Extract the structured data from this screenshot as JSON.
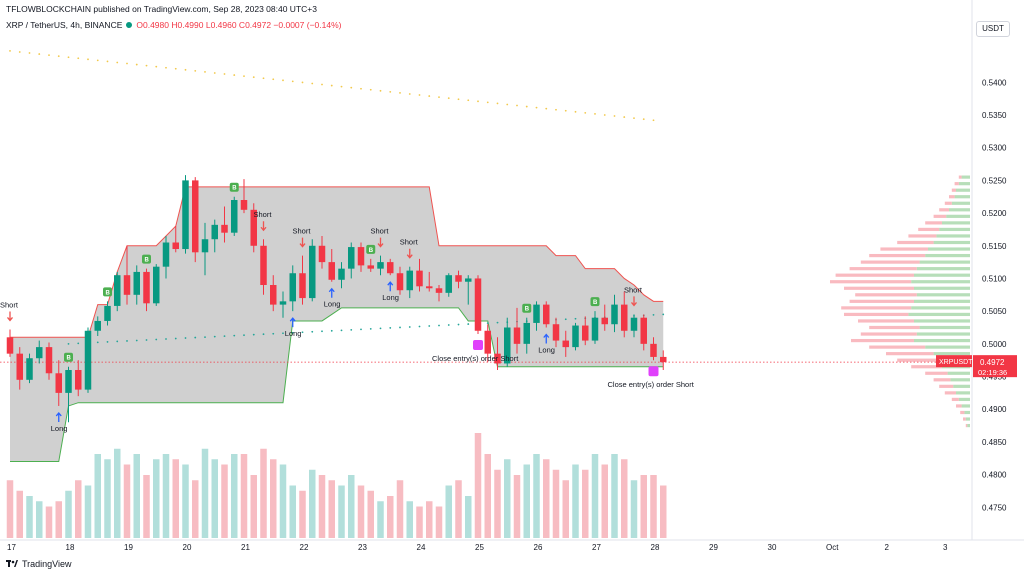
{
  "header": {
    "publisher": "TFLOWBLOCKCHAIN published on TradingView.com, Sep 28, 2023 08:40 UTC+3",
    "symbol": "XRP / TetherUS, 4h, BINANCE",
    "ohlc": "O0.4980 H0.4990 L0.4960 C0.4972 −0.0007 (−0.14%)",
    "currency": "USDT"
  },
  "footer": {
    "brand": "TradingView"
  },
  "colors": {
    "up": "#089981",
    "down": "#f23645",
    "upVol": "#b2dfdb",
    "downVol": "#f7bcc2",
    "band": "#c8c8c8",
    "bandEdgeUp": "#4caf50",
    "bandEdgeDown": "#ef5350",
    "profileUp": "#a5d6a7",
    "profileDown": "#f8a9b0",
    "signalGreen": "#4caf50",
    "signalRed": "#ef5350",
    "close": "#e040fb"
  },
  "price_label": {
    "symbol": "XRPUSDT",
    "price": "0.4972",
    "countdown": "02:19:36"
  },
  "chart_data": {
    "type": "candlestick",
    "title": "XRP / TetherUS, 4h, BINANCE",
    "ylim": [
      0.47,
      0.548
    ],
    "y_ticks": [
      "0.5400",
      "0.5350",
      "0.5300",
      "0.5250",
      "0.5200",
      "0.5150",
      "0.5100",
      "0.5050",
      "0.5000",
      "0.4950",
      "0.4900",
      "0.4850",
      "0.4800",
      "0.4750"
    ],
    "x_ticks": [
      {
        "label": "17",
        "bar": 0
      },
      {
        "label": "18",
        "bar": 6
      },
      {
        "label": "19",
        "bar": 12
      },
      {
        "label": "20",
        "bar": 18
      },
      {
        "label": "21",
        "bar": 24
      },
      {
        "label": "22",
        "bar": 30
      },
      {
        "label": "23",
        "bar": 36
      },
      {
        "label": "24",
        "bar": 42
      },
      {
        "label": "25",
        "bar": 48
      },
      {
        "label": "26",
        "bar": 54
      },
      {
        "label": "27",
        "bar": 60
      },
      {
        "label": "28",
        "bar": 66
      },
      {
        "label": "29",
        "bar": 72
      },
      {
        "label": "30",
        "bar": 78
      },
      {
        "label": "Oct",
        "bar": 84
      },
      {
        "label": "2",
        "bar": 90
      },
      {
        "label": "3",
        "bar": 96
      }
    ],
    "candles": [
      [
        0.501,
        0.5022,
        0.498,
        0.4985
      ],
      [
        0.4985,
        0.4995,
        0.493,
        0.4945
      ],
      [
        0.4945,
        0.4985,
        0.494,
        0.4978
      ],
      [
        0.4978,
        0.5005,
        0.497,
        0.4995
      ],
      [
        0.4995,
        0.5002,
        0.4945,
        0.4955
      ],
      [
        0.4955,
        0.4975,
        0.4905,
        0.4925
      ],
      [
        0.4925,
        0.4965,
        0.488,
        0.496
      ],
      [
        0.496,
        0.4975,
        0.492,
        0.493
      ],
      [
        0.493,
        0.5025,
        0.4925,
        0.502
      ],
      [
        0.502,
        0.5042,
        0.5012,
        0.5035
      ],
      [
        0.5035,
        0.5065,
        0.5028,
        0.5058
      ],
      [
        0.5058,
        0.511,
        0.505,
        0.5105
      ],
      [
        0.5105,
        0.515,
        0.506,
        0.5075
      ],
      [
        0.5075,
        0.512,
        0.506,
        0.511
      ],
      [
        0.511,
        0.5115,
        0.505,
        0.5062
      ],
      [
        0.5062,
        0.5122,
        0.5058,
        0.5118
      ],
      [
        0.5118,
        0.5165,
        0.51,
        0.5155
      ],
      [
        0.5155,
        0.518,
        0.514,
        0.5145
      ],
      [
        0.5145,
        0.5258,
        0.5138,
        0.525
      ],
      [
        0.525,
        0.5255,
        0.5125,
        0.514
      ],
      [
        0.514,
        0.5185,
        0.5105,
        0.516
      ],
      [
        0.516,
        0.519,
        0.514,
        0.5182
      ],
      [
        0.5182,
        0.521,
        0.5155,
        0.517
      ],
      [
        0.517,
        0.5225,
        0.5165,
        0.522
      ],
      [
        0.522,
        0.5252,
        0.52,
        0.5205
      ],
      [
        0.5205,
        0.5215,
        0.514,
        0.515
      ],
      [
        0.515,
        0.516,
        0.5075,
        0.509
      ],
      [
        0.509,
        0.5105,
        0.505,
        0.506
      ],
      [
        0.506,
        0.508,
        0.504,
        0.5065
      ],
      [
        0.5065,
        0.512,
        0.505,
        0.5108
      ],
      [
        0.5108,
        0.5135,
        0.506,
        0.507
      ],
      [
        0.507,
        0.516,
        0.5065,
        0.515
      ],
      [
        0.515,
        0.5165,
        0.5115,
        0.5125
      ],
      [
        0.5125,
        0.5145,
        0.5095,
        0.5098
      ],
      [
        0.5098,
        0.5125,
        0.5085,
        0.5115
      ],
      [
        0.5115,
        0.5155,
        0.51,
        0.5148
      ],
      [
        0.5148,
        0.5155,
        0.511,
        0.512
      ],
      [
        0.512,
        0.513,
        0.511,
        0.5115
      ],
      [
        0.5115,
        0.5135,
        0.5105,
        0.5125
      ],
      [
        0.5125,
        0.513,
        0.5105,
        0.5108
      ],
      [
        0.5108,
        0.5118,
        0.5075,
        0.5082
      ],
      [
        0.5082,
        0.5118,
        0.507,
        0.5112
      ],
      [
        0.5112,
        0.513,
        0.508,
        0.5088
      ],
      [
        0.5088,
        0.511,
        0.508,
        0.5085
      ],
      [
        0.5085,
        0.509,
        0.5065,
        0.5078
      ],
      [
        0.5078,
        0.5108,
        0.5072,
        0.5105
      ],
      [
        0.5105,
        0.5112,
        0.5085,
        0.5095
      ],
      [
        0.5095,
        0.5105,
        0.506,
        0.51
      ],
      [
        0.51,
        0.5105,
        0.5015,
        0.502
      ],
      [
        0.502,
        0.503,
        0.4972,
        0.4985
      ],
      [
        0.4985,
        0.501,
        0.496,
        0.497
      ],
      [
        0.497,
        0.504,
        0.4965,
        0.5025
      ],
      [
        0.5025,
        0.5055,
        0.4985,
        0.5
      ],
      [
        0.5,
        0.504,
        0.4985,
        0.5032
      ],
      [
        0.5032,
        0.5065,
        0.502,
        0.506
      ],
      [
        0.506,
        0.5065,
        0.5025,
        0.503
      ],
      [
        0.503,
        0.504,
        0.4995,
        0.5005
      ],
      [
        0.5005,
        0.502,
        0.498,
        0.4995
      ],
      [
        0.4995,
        0.5032,
        0.499,
        0.5028
      ],
      [
        0.5028,
        0.5042,
        0.4998,
        0.5005
      ],
      [
        0.5005,
        0.505,
        0.5,
        0.504
      ],
      [
        0.504,
        0.506,
        0.502,
        0.503
      ],
      [
        0.503,
        0.5075,
        0.5018,
        0.506
      ],
      [
        0.506,
        0.508,
        0.501,
        0.502
      ],
      [
        0.502,
        0.5045,
        0.501,
        0.504
      ],
      [
        0.504,
        0.5045,
        0.499,
        0.5
      ],
      [
        0.5,
        0.501,
        0.4975,
        0.498
      ],
      [
        0.498,
        0.499,
        0.496,
        0.4972
      ]
    ],
    "volumes": [
      0.55,
      0.45,
      0.4,
      0.35,
      0.3,
      0.35,
      0.45,
      0.55,
      0.5,
      0.8,
      0.75,
      0.85,
      0.7,
      0.8,
      0.6,
      0.75,
      0.8,
      0.75,
      0.7,
      0.55,
      0.85,
      0.75,
      0.7,
      0.8,
      0.8,
      0.6,
      0.85,
      0.75,
      0.7,
      0.5,
      0.45,
      0.65,
      0.6,
      0.55,
      0.5,
      0.6,
      0.5,
      0.45,
      0.35,
      0.4,
      0.55,
      0.35,
      0.3,
      0.35,
      0.3,
      0.5,
      0.55,
      0.4,
      1.0,
      0.8,
      0.65,
      0.75,
      0.6,
      0.7,
      0.8,
      0.75,
      0.65,
      0.55,
      0.7,
      0.65,
      0.8,
      0.7,
      0.8,
      0.75,
      0.55,
      0.6,
      0.6,
      0.5
    ],
    "band": {
      "upper": [
        0.501,
        0.501,
        0.501,
        0.501,
        0.501,
        0.501,
        0.501,
        0.501,
        0.501,
        0.506,
        0.506,
        0.511,
        0.515,
        0.515,
        0.515,
        0.515,
        0.5165,
        0.518,
        0.524,
        0.524,
        0.524,
        0.524,
        0.524,
        0.524,
        0.524,
        0.524,
        0.524,
        0.524,
        0.524,
        0.524,
        0.524,
        0.524,
        0.524,
        0.524,
        0.524,
        0.524,
        0.524,
        0.524,
        0.524,
        0.524,
        0.524,
        0.524,
        0.524,
        0.524,
        0.515,
        0.515,
        0.515,
        0.515,
        0.515,
        0.515,
        0.515,
        0.515,
        0.515,
        0.515,
        0.515,
        0.515,
        0.5135,
        0.5135,
        0.5135,
        0.5115,
        0.5115,
        0.5115,
        0.5115,
        0.51,
        0.509,
        0.5075,
        0.5065,
        0.5065
      ],
      "lower": [
        0.482,
        0.482,
        0.482,
        0.482,
        0.482,
        0.482,
        0.4905,
        0.491,
        0.491,
        0.491,
        0.491,
        0.491,
        0.491,
        0.491,
        0.491,
        0.491,
        0.491,
        0.491,
        0.491,
        0.491,
        0.491,
        0.491,
        0.491,
        0.491,
        0.491,
        0.491,
        0.491,
        0.491,
        0.491,
        0.5035,
        0.5035,
        0.5035,
        0.5035,
        0.5045,
        0.5055,
        0.5055,
        0.5055,
        0.5055,
        0.5055,
        0.5055,
        0.5055,
        0.5055,
        0.5055,
        0.5055,
        0.5055,
        0.5055,
        0.5055,
        0.5035,
        0.5035,
        0.5035,
        0.4965,
        0.4965,
        0.4965,
        0.4965,
        0.4965,
        0.4965,
        0.4965,
        0.4965,
        0.4965,
        0.4965,
        0.4965,
        0.4965,
        0.4965,
        0.4965,
        0.4965,
        0.4965,
        0.4965,
        0.4965
      ]
    },
    "ma_high": {
      "start_bar": 0,
      "start": 0.5448,
      "end_bar": 66,
      "end": 0.5342
    },
    "ma_mid": {
      "start_bar": 6,
      "start": 0.5,
      "end_bar": 67,
      "end": 0.5045
    },
    "current_price": 0.4972,
    "signals": [
      {
        "bar": 0,
        "kind": "sell",
        "label": "Short"
      },
      {
        "bar": 5,
        "kind": "buy",
        "label": "Long"
      },
      {
        "bar": 6,
        "kind": "badge-green"
      },
      {
        "bar": 10,
        "kind": "badge-green"
      },
      {
        "bar": 14,
        "kind": "badge-green"
      },
      {
        "bar": 23,
        "kind": "badge-green"
      },
      {
        "bar": 26,
        "kind": "sell",
        "label": "Short"
      },
      {
        "bar": 29,
        "kind": "buy",
        "label": "Long"
      },
      {
        "bar": 30,
        "kind": "sell",
        "label": "Short"
      },
      {
        "bar": 33,
        "kind": "buy",
        "label": "Long"
      },
      {
        "bar": 37,
        "kind": "badge-green"
      },
      {
        "bar": 38,
        "kind": "sell",
        "label": "Short"
      },
      {
        "bar": 39,
        "kind": "buy",
        "label": "Long"
      },
      {
        "bar": 41,
        "kind": "sell",
        "label": "Short"
      },
      {
        "bar": 48,
        "kind": "close",
        "label": "Close entry(s) order Short"
      },
      {
        "bar": 53,
        "kind": "badge-green"
      },
      {
        "bar": 55,
        "kind": "buy",
        "label": "Long"
      },
      {
        "bar": 60,
        "kind": "badge-green"
      },
      {
        "bar": 64,
        "kind": "sell",
        "label": "Short"
      },
      {
        "bar": 66,
        "kind": "close",
        "label": "Close entry(s) order Short"
      }
    ],
    "volume_profile": [
      {
        "price": 0.5255,
        "up": 0.06,
        "down": 0.02
      },
      {
        "price": 0.5245,
        "up": 0.08,
        "down": 0.03
      },
      {
        "price": 0.5235,
        "up": 0.1,
        "down": 0.03
      },
      {
        "price": 0.5225,
        "up": 0.11,
        "down": 0.04
      },
      {
        "price": 0.5215,
        "up": 0.13,
        "down": 0.05
      },
      {
        "price": 0.5205,
        "up": 0.15,
        "down": 0.07
      },
      {
        "price": 0.5195,
        "up": 0.17,
        "down": 0.09
      },
      {
        "price": 0.5185,
        "up": 0.2,
        "down": 0.12
      },
      {
        "price": 0.5175,
        "up": 0.22,
        "down": 0.15
      },
      {
        "price": 0.5165,
        "up": 0.24,
        "down": 0.2
      },
      {
        "price": 0.5155,
        "up": 0.26,
        "down": 0.26
      },
      {
        "price": 0.5145,
        "up": 0.3,
        "down": 0.34
      },
      {
        "price": 0.5135,
        "up": 0.32,
        "down": 0.4
      },
      {
        "price": 0.5125,
        "up": 0.36,
        "down": 0.42
      },
      {
        "price": 0.5115,
        "up": 0.38,
        "down": 0.48
      },
      {
        "price": 0.5105,
        "up": 0.4,
        "down": 0.56
      },
      {
        "price": 0.5095,
        "up": 0.42,
        "down": 0.58
      },
      {
        "price": 0.5085,
        "up": 0.4,
        "down": 0.5
      },
      {
        "price": 0.5075,
        "up": 0.38,
        "down": 0.44
      },
      {
        "price": 0.5065,
        "up": 0.4,
        "down": 0.46
      },
      {
        "price": 0.5055,
        "up": 0.42,
        "down": 0.5
      },
      {
        "price": 0.5045,
        "up": 0.44,
        "down": 0.46
      },
      {
        "price": 0.5035,
        "up": 0.4,
        "down": 0.4
      },
      {
        "price": 0.5025,
        "up": 0.36,
        "down": 0.36
      },
      {
        "price": 0.5015,
        "up": 0.38,
        "down": 0.4
      },
      {
        "price": 0.5005,
        "up": 0.4,
        "down": 0.45
      },
      {
        "price": 0.4995,
        "up": 0.32,
        "down": 0.4
      },
      {
        "price": 0.4985,
        "up": 0.26,
        "down": 0.34
      },
      {
        "price": 0.4975,
        "up": 0.22,
        "down": 0.3
      },
      {
        "price": 0.4965,
        "up": 0.2,
        "down": 0.22
      },
      {
        "price": 0.4955,
        "up": 0.16,
        "down": 0.16
      },
      {
        "price": 0.4945,
        "up": 0.14,
        "down": 0.12
      },
      {
        "price": 0.4935,
        "up": 0.12,
        "down": 0.1
      },
      {
        "price": 0.4925,
        "up": 0.1,
        "down": 0.08
      },
      {
        "price": 0.4915,
        "up": 0.08,
        "down": 0.05
      },
      {
        "price": 0.4905,
        "up": 0.06,
        "down": 0.04
      },
      {
        "price": 0.4895,
        "up": 0.04,
        "down": 0.03
      },
      {
        "price": 0.4885,
        "up": 0.03,
        "down": 0.02
      },
      {
        "price": 0.4875,
        "up": 0.02,
        "down": 0.01
      }
    ]
  }
}
